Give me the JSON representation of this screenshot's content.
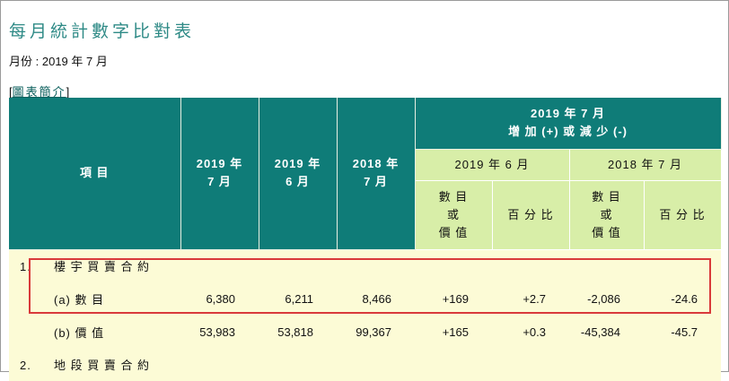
{
  "page": {
    "title": "每月統計數字比對表",
    "month_label": "月份 :",
    "month_value": "2019 年 7 月",
    "intro_open": "[",
    "intro_link": "圖表簡介",
    "intro_close": "]"
  },
  "table": {
    "header": {
      "item": "項 目",
      "col1_a": "2019 年",
      "col1_b": "7 月",
      "col2_a": "2019 年",
      "col2_b": "6 月",
      "col3_a": "2018 年",
      "col3_b": "7 月",
      "change_a": "2019 年 7 月",
      "change_b": "增 加 (+) 或 減 少 (-)",
      "vs1": "2019 年 6 月",
      "vs2": "2018 年 7 月",
      "qty_a": "數 目",
      "qty_b": "或",
      "qty_c": "價 值",
      "pct": "百 分 比"
    },
    "rows": [
      {
        "type": "section",
        "no": "1.",
        "label": "樓 宇 買 賣 合 約"
      },
      {
        "type": "data",
        "label": "(a) 數 目",
        "c1": "6,380",
        "c2": "6,211",
        "c3": "8,466",
        "c4": "+169",
        "c5": "+2.7",
        "c6": "-2,086",
        "c7": "-24.6"
      },
      {
        "type": "data",
        "label": "(b) 價 值",
        "c1": "53,983",
        "c2": "53,818",
        "c3": "99,367",
        "c4": "+165",
        "c5": "+0.3",
        "c6": "-45,384",
        "c7": "-45.7"
      },
      {
        "type": "section",
        "no": "2.",
        "label": "地 段 買 賣 合 約"
      }
    ]
  },
  "colors": {
    "header_dark": "#0f7c78",
    "header_light": "#d8eea8",
    "row_bg": "#fcfbd6",
    "title": "#2e8a86",
    "highlight": "#d93a3a"
  }
}
